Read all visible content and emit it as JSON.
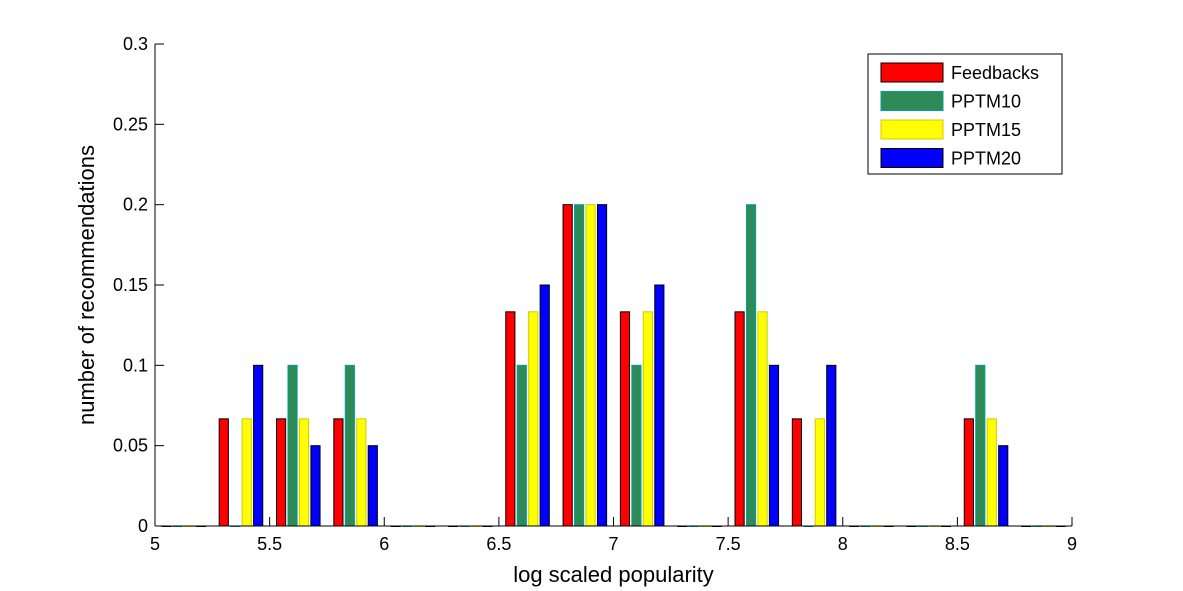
{
  "chart_data": {
    "type": "bar",
    "xlabel": "log scaled popularity",
    "ylabel": "number of recommendations",
    "xlim": [
      5,
      9
    ],
    "ylim": [
      0,
      0.3
    ],
    "xticks": [
      5,
      5.5,
      6,
      6.5,
      7,
      7.5,
      8,
      8.5,
      9
    ],
    "xtick_labels": [
      "5",
      "5.5",
      "6",
      "6.5",
      "7",
      "7.5",
      "8",
      "8.5",
      "9"
    ],
    "yticks": [
      0,
      0.05,
      0.1,
      0.15,
      0.2,
      0.25,
      0.3
    ],
    "ytick_labels": [
      "0",
      "0.05",
      "0.1",
      "0.15",
      "0.2",
      "0.25",
      "0.3"
    ],
    "legend_position": "top-right",
    "categories": [
      5.125,
      5.375,
      5.625,
      5.875,
      6.125,
      6.375,
      6.625,
      6.875,
      7.125,
      7.375,
      7.625,
      7.875,
      8.125,
      8.375,
      8.625,
      8.875
    ],
    "series": [
      {
        "name": "Feedbacks",
        "color": "#ff0000",
        "edge": "#000000",
        "values": [
          0,
          0.0667,
          0.0667,
          0.0667,
          0,
          0,
          0.1333,
          0.2,
          0.1333,
          0,
          0.1333,
          0.0667,
          0,
          0,
          0.0667,
          0
        ]
      },
      {
        "name": "PPTM10",
        "color": "#2e8b57",
        "edge": "#00a0a0",
        "values": [
          0,
          0,
          0.1,
          0.1,
          0,
          0,
          0.1,
          0.2,
          0.1,
          0,
          0.2,
          0,
          0,
          0,
          0.1,
          0
        ]
      },
      {
        "name": "PPTM15",
        "color": "#ffff00",
        "edge": "#cccc00",
        "values": [
          0,
          0.0667,
          0.0667,
          0.0667,
          0,
          0,
          0.1333,
          0.2,
          0.1333,
          0,
          0.1333,
          0.0667,
          0,
          0,
          0.0667,
          0
        ]
      },
      {
        "name": "PPTM20",
        "color": "#0000ff",
        "edge": "#000000",
        "values": [
          0,
          0.1,
          0.05,
          0.05,
          0,
          0,
          0.15,
          0.2,
          0.15,
          0,
          0.1,
          0.1,
          0,
          0,
          0.05,
          0
        ]
      }
    ]
  }
}
